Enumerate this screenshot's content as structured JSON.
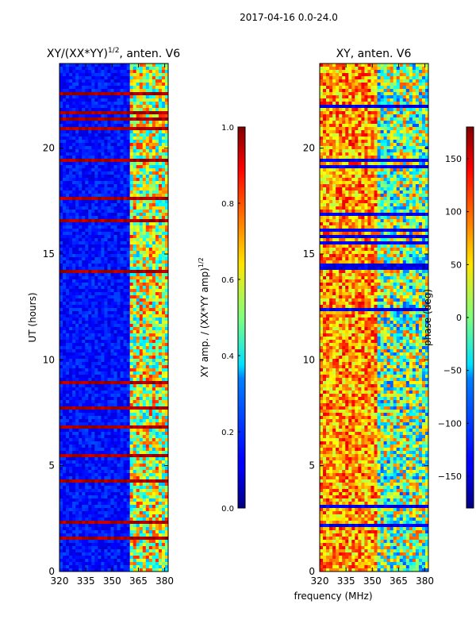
{
  "suptitle": "2017-04-16 0.0-24.0",
  "xlabel_shared": "frequency (MHz)",
  "chart_data": [
    {
      "type": "heatmap",
      "title_prefix": "XY/(XX*YY)",
      "title_sup": "1/2",
      "title_suffix": ", anten. V6",
      "xlabel": "",
      "ylabel": "UT (hours)",
      "xlim": [
        320,
        382
      ],
      "ylim": [
        0,
        24
      ],
      "xticks": [
        320,
        335,
        350,
        365,
        380
      ],
      "yticks": [
        0,
        5,
        10,
        15,
        20
      ],
      "colorbar": {
        "label_prefix": "XY amp. / (XX*YY amp)",
        "label_sup": "1/2",
        "range": [
          0.0,
          1.0
        ],
        "ticks": [
          "0.0",
          "0.2",
          "0.4",
          "0.6",
          "0.8",
          "1.0"
        ],
        "tick_values": [
          0.0,
          0.2,
          0.4,
          0.6,
          0.8,
          1.0
        ],
        "colormap": "jet"
      }
    },
    {
      "type": "heatmap",
      "title": "XY, anten. V6",
      "xlabel": "frequency (MHz)",
      "ylabel": "",
      "xlim": [
        320,
        382
      ],
      "ylim": [
        0,
        24
      ],
      "xticks": [
        320,
        335,
        350,
        365,
        380
      ],
      "yticks": [
        0,
        5,
        10,
        15,
        20
      ],
      "colorbar": {
        "label": "phase (deg)",
        "range": [
          -180,
          180
        ],
        "ticks": [
          "150",
          "100",
          "50",
          "0",
          "−50",
          "−100",
          "−150"
        ],
        "tick_values": [
          150,
          100,
          50,
          0,
          -50,
          -100,
          -150
        ],
        "colormap": "jet"
      }
    }
  ]
}
